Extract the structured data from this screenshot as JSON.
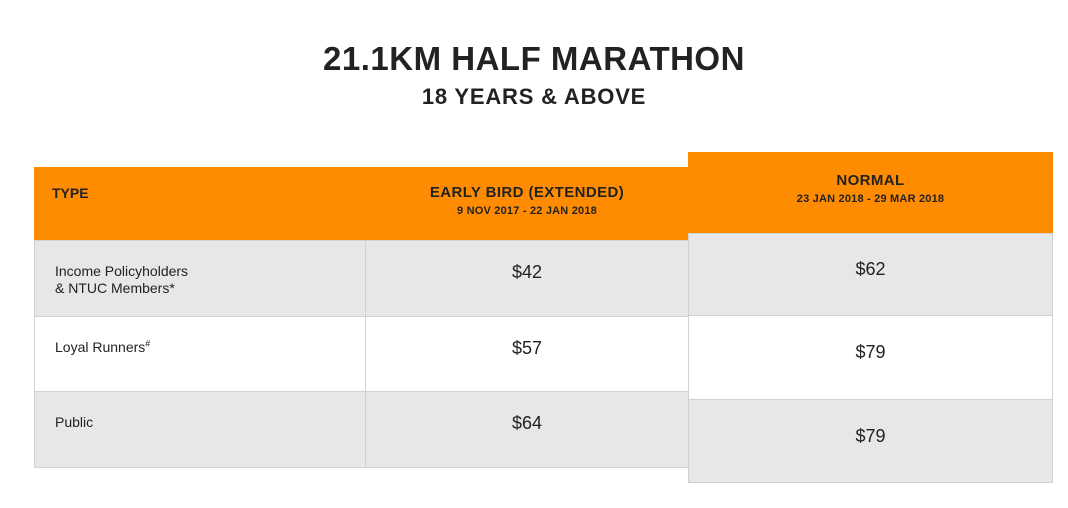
{
  "heading": {
    "title": "21.1KM HALF MARATHON",
    "subtitle": "18 YEARS & ABOVE"
  },
  "table": {
    "headers": {
      "type": "TYPE",
      "early_bird": {
        "title": "EARLY BIRD (EXTENDED)",
        "dates": "9 NOV 2017 - 22 JAN 2018"
      },
      "normal": {
        "title": "NORMAL",
        "dates": "23 JAN 2018 - 29 MAR 2018"
      }
    },
    "rows": [
      {
        "type_line1": "Income Policyholders",
        "type_line2": "& NTUC Members*",
        "early_bird": "$42",
        "normal": "$62"
      },
      {
        "type_line1": "Loyal Runners",
        "type_sup": "#",
        "early_bird": "$57",
        "normal": "$79"
      },
      {
        "type_line1": "Public",
        "early_bird": "$64",
        "normal": "$79"
      }
    ]
  },
  "colors": {
    "header_bg": "#ff8c00",
    "row_gray": "#e6e7e9",
    "row_white": "#ffffff",
    "text": "#222222"
  }
}
